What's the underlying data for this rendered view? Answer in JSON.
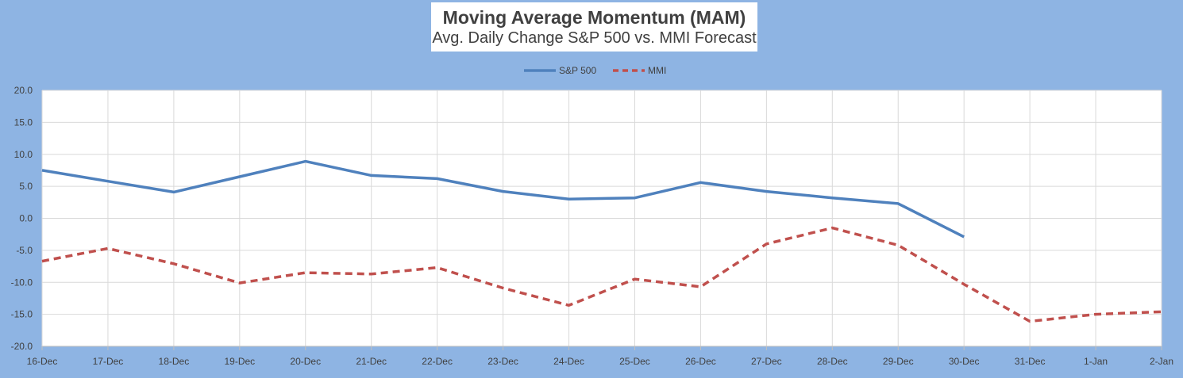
{
  "chart_data": {
    "type": "line",
    "title": "Moving Average Momentum (MAM)",
    "subtitle": "Avg. Daily Change S&P 500 vs. MMI Forecast",
    "categories": [
      "16-Dec",
      "17-Dec",
      "18-Dec",
      "19-Dec",
      "20-Dec",
      "21-Dec",
      "22-Dec",
      "23-Dec",
      "24-Dec",
      "25-Dec",
      "26-Dec",
      "27-Dec",
      "28-Dec",
      "29-Dec",
      "30-Dec",
      "31-Dec",
      "1-Jan",
      "2-Jan"
    ],
    "ylim": [
      -20,
      20
    ],
    "yticks": [
      "20.0",
      "15.0",
      "10.0",
      "5.0",
      "0.0",
      "-5.0",
      "-10.0",
      "-15.0",
      "-20.0"
    ],
    "grid": true,
    "legend_position": "top-center",
    "series": [
      {
        "name": "S&P 500",
        "style": "solid",
        "color": "#4f81bd",
        "values": [
          7.5,
          5.8,
          4.1,
          6.5,
          8.9,
          6.7,
          6.2,
          4.2,
          3.0,
          3.2,
          5.6,
          4.2,
          3.2,
          2.3,
          -2.9,
          null,
          null,
          null
        ]
      },
      {
        "name": "MMI",
        "style": "dashed",
        "color": "#c0504d",
        "values": [
          -6.7,
          -4.7,
          -7.1,
          -10.1,
          -8.5,
          -8.7,
          -7.7,
          -10.9,
          -13.6,
          -9.5,
          -10.7,
          -4.0,
          -1.5,
          -4.2,
          -10.3,
          -16.1,
          -15.0,
          -14.6
        ]
      }
    ]
  }
}
